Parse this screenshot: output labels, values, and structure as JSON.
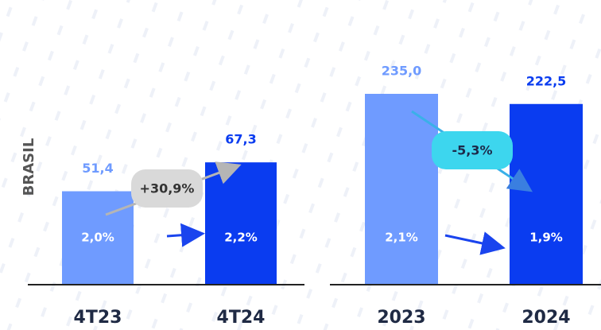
{
  "chart_data": [
    {
      "type": "bar",
      "label": "BRASIL",
      "categories": [
        "4T23",
        "4T24"
      ],
      "values": [
        51.4,
        67.3
      ],
      "value_labels": [
        "51,4",
        "67,3"
      ],
      "colors": [
        "#6f9bff",
        "#0a3cf0"
      ],
      "rates": [
        "2,0%",
        "2,2%"
      ],
      "change": "+30,9%",
      "ylim": [
        0,
        105
      ]
    },
    {
      "type": "bar",
      "categories": [
        "2023",
        "2024"
      ],
      "values": [
        235.0,
        222.5
      ],
      "value_labels": [
        "235,0",
        "222,5"
      ],
      "colors": [
        "#6f9bff",
        "#0a3cf0"
      ],
      "rates": [
        "2,1%",
        "1,9%"
      ],
      "change": "-5,3%",
      "ylim": [
        0,
        235
      ]
    }
  ]
}
